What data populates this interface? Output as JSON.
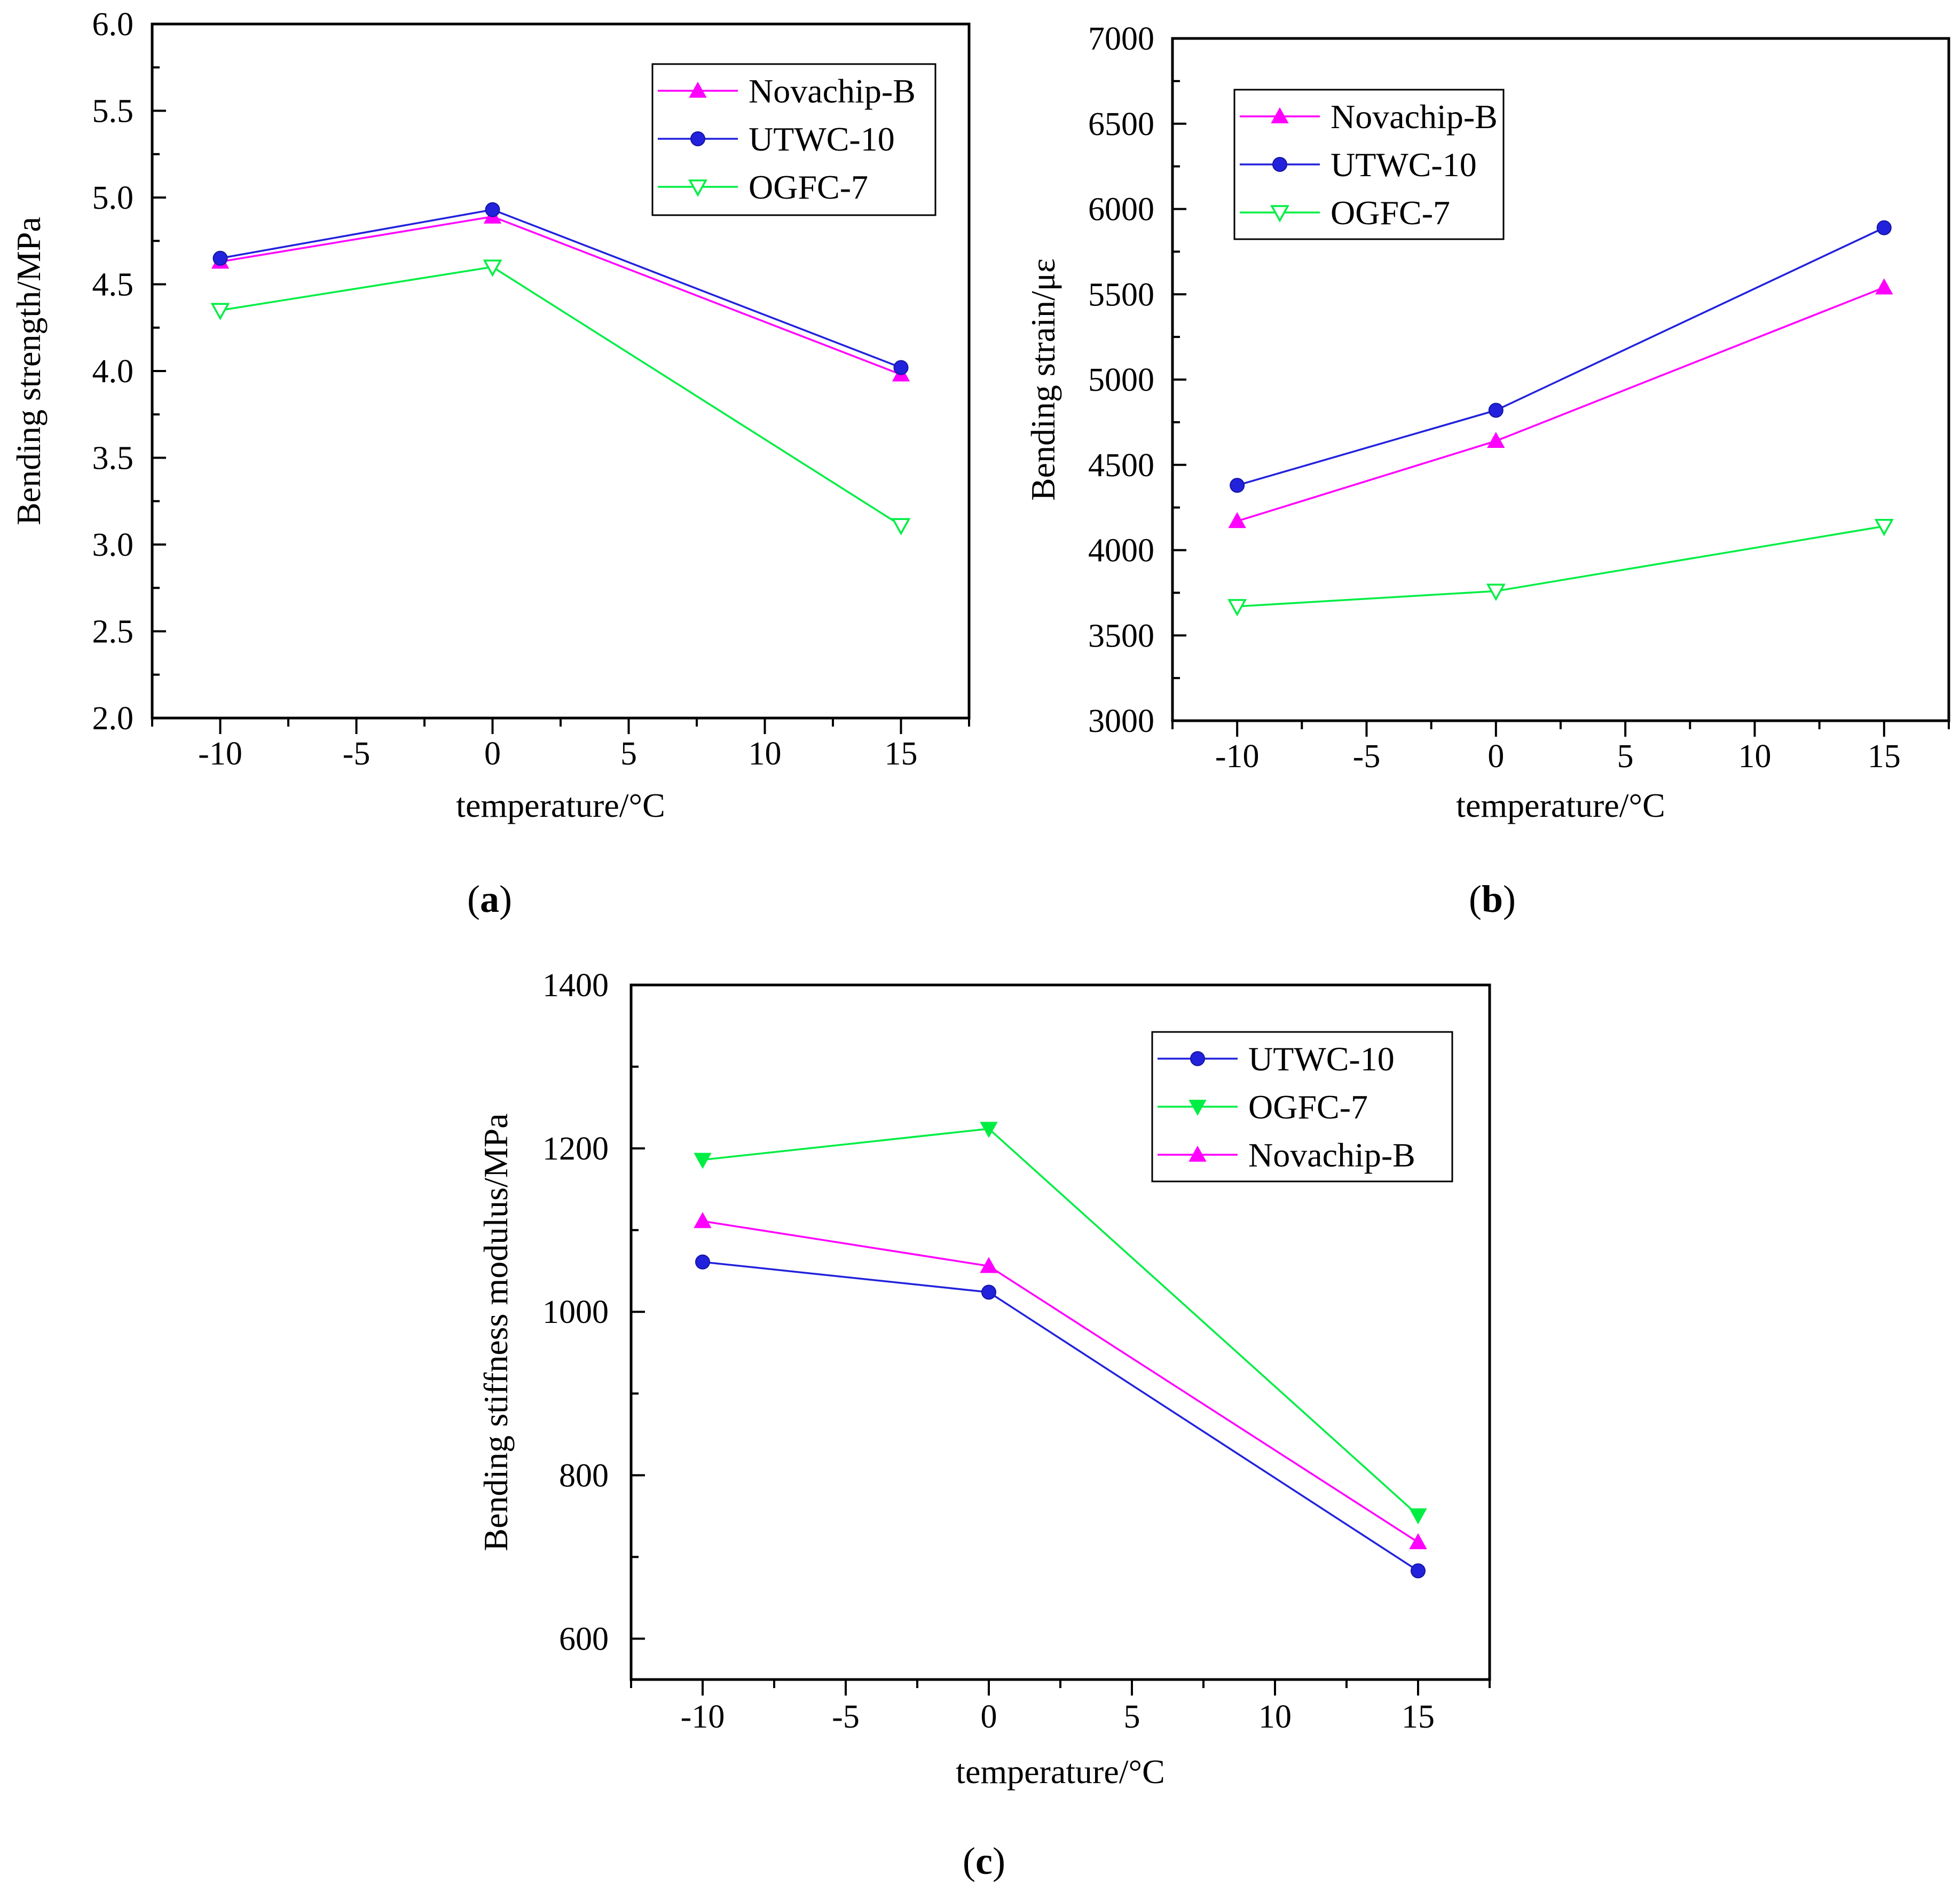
{
  "figure": {
    "panels": [
      {
        "caption_open": "(",
        "caption_letter": "a",
        "caption_close": ")"
      },
      {
        "caption_open": "(",
        "caption_letter": "b",
        "caption_close": ")"
      },
      {
        "caption_open": "(",
        "caption_letter": "c",
        "caption_close": ")"
      }
    ]
  },
  "colors": {
    "Novachip-B": "#ff00ff",
    "UTWC-10": "#2222dd",
    "OGFC-7": "#00ee44"
  },
  "chart_data": [
    {
      "type": "line",
      "title": "",
      "xlabel": "temperature/°C",
      "ylabel": "Bending strength/MPa",
      "xlim": [
        -12.5,
        17.5
      ],
      "ylim": [
        2.0,
        6.0
      ],
      "xticks": [
        -10,
        -5,
        0,
        5,
        10,
        15
      ],
      "xtick_labels": [
        "-10",
        "-5",
        "0",
        "5",
        "10",
        "15"
      ],
      "yticks": [
        2.0,
        2.5,
        3.0,
        3.5,
        4.0,
        4.5,
        5.0,
        5.5,
        6.0
      ],
      "ytick_labels": [
        "2.0",
        "2.5",
        "3.0",
        "3.5",
        "4.0",
        "4.5",
        "5.0",
        "5.5",
        "6.0"
      ],
      "legend_position": "top-right",
      "x": [
        -10,
        0,
        15
      ],
      "series": [
        {
          "name": "Novachip-B",
          "marker": "triangle-up",
          "values": [
            4.63,
            4.89,
            3.98
          ]
        },
        {
          "name": "UTWC-10",
          "marker": "circle",
          "values": [
            4.65,
            4.93,
            4.02
          ]
        },
        {
          "name": "OGFC-7",
          "marker": "triangle-down-open",
          "values": [
            4.35,
            4.6,
            3.11
          ]
        }
      ]
    },
    {
      "type": "line",
      "title": "",
      "xlabel": "temperature/°C",
      "ylabel": "Bending strain/με",
      "xlim": [
        -12.5,
        17.5
      ],
      "ylim": [
        3000,
        7000
      ],
      "xticks": [
        -10,
        -5,
        0,
        5,
        10,
        15
      ],
      "xtick_labels": [
        "-10",
        "-5",
        "0",
        "5",
        "10",
        "15"
      ],
      "yticks": [
        3000,
        3500,
        4000,
        4500,
        5000,
        5500,
        6000,
        6500,
        7000
      ],
      "ytick_labels": [
        "3000",
        "3500",
        "4000",
        "4500",
        "5000",
        "5500",
        "6000",
        "6500",
        "7000"
      ],
      "legend_position": "top-left",
      "x": [
        -10,
        0,
        15
      ],
      "series": [
        {
          "name": "Novachip-B",
          "marker": "triangle-up",
          "values": [
            4170,
            4640,
            5540
          ]
        },
        {
          "name": "UTWC-10",
          "marker": "circle",
          "values": [
            4380,
            4820,
            5890
          ]
        },
        {
          "name": "OGFC-7",
          "marker": "triangle-down-open",
          "values": [
            3670,
            3760,
            4140
          ]
        }
      ]
    },
    {
      "type": "line",
      "title": "",
      "xlabel": "temperature/°C",
      "ylabel": "Bending stiffness modulus/MPa",
      "xlim": [
        -12.5,
        17.5
      ],
      "ylim": [
        550,
        1400
      ],
      "xticks": [
        -10,
        -5,
        0,
        5,
        10,
        15
      ],
      "xtick_labels": [
        "-10",
        "-5",
        "0",
        "5",
        "10",
        "15"
      ],
      "yticks": [
        600,
        800,
        1000,
        1200,
        1400
      ],
      "ytick_labels": [
        "600",
        "800",
        "1000",
        "1200",
        "1400"
      ],
      "legend_position": "top-right",
      "x": [
        -10,
        0,
        15
      ],
      "series": [
        {
          "name": "UTWC-10",
          "marker": "circle",
          "values": [
            1061,
            1024,
            683
          ]
        },
        {
          "name": "OGFC-7",
          "marker": "triangle-down",
          "values": [
            1186,
            1224,
            751
          ]
        },
        {
          "name": "Novachip-B",
          "marker": "triangle-up",
          "values": [
            1111,
            1056,
            718
          ]
        }
      ]
    }
  ]
}
